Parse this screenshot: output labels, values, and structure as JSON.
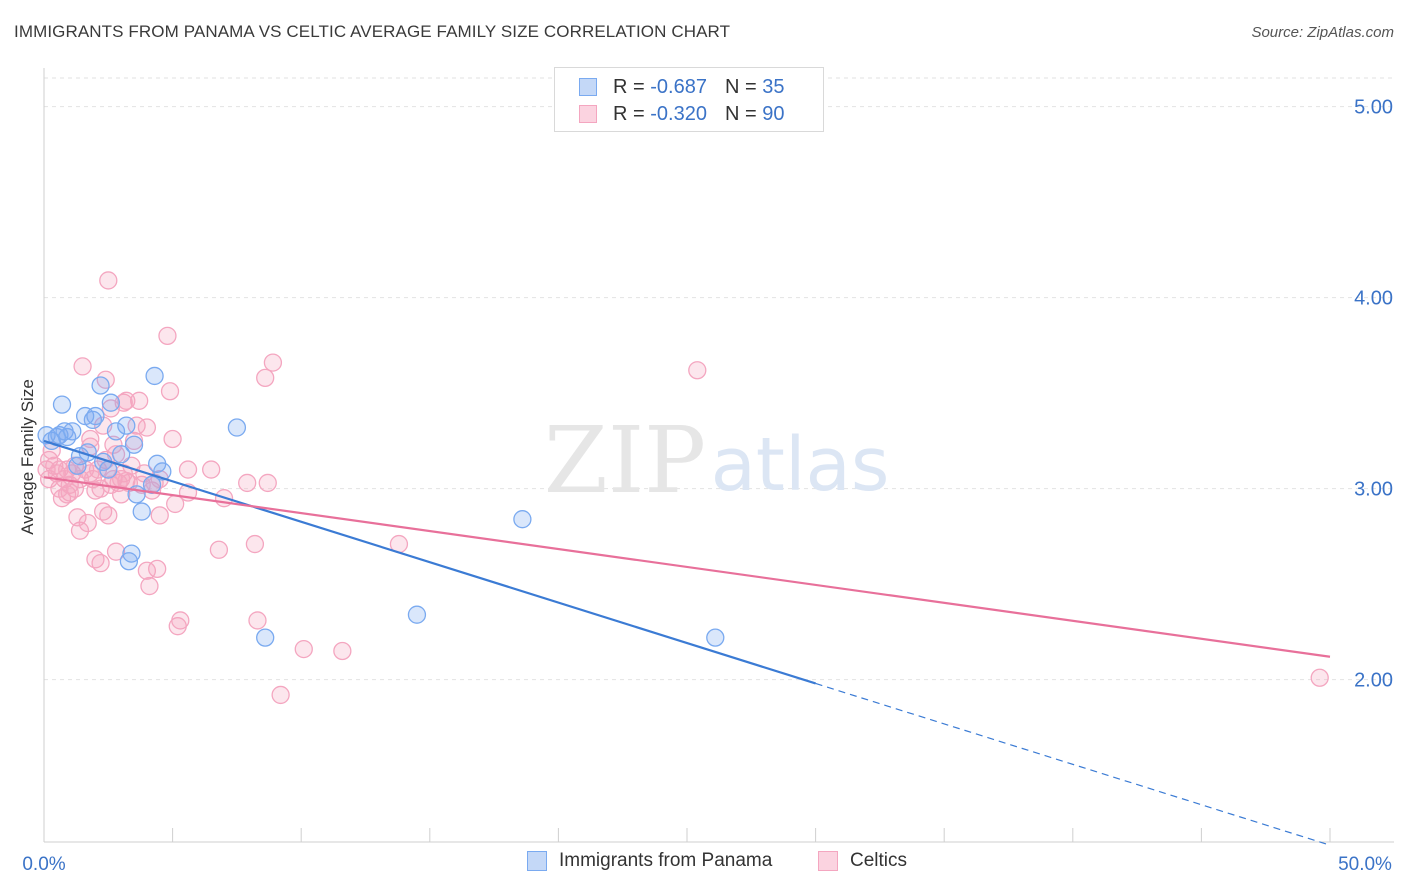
{
  "title": "IMMIGRANTS FROM PANAMA VS CELTIC AVERAGE FAMILY SIZE CORRELATION CHART",
  "source": "Source: ZipAtlas.com",
  "watermark": {
    "zip": "ZIP",
    "atlas": "atlas"
  },
  "legend_top": {
    "rows": [
      {
        "r_label": "R =",
        "r_value": "-0.687",
        "n_label": "N =",
        "n_value": "35",
        "color": "#7aaaf0"
      },
      {
        "r_label": "R =",
        "r_value": "-0.320",
        "n_label": "N =",
        "n_value": "90",
        "color": "#f4a6c0"
      }
    ]
  },
  "legend_bottom": {
    "items": [
      {
        "label": "Immigrants from Panama",
        "color": "#7aaaf0"
      },
      {
        "label": "Celtics",
        "color": "#f4a6c0"
      }
    ]
  },
  "chart_data": {
    "type": "scatter",
    "title": "IMMIGRANTS FROM PANAMA VS CELTIC AVERAGE FAMILY SIZE CORRELATION CHART",
    "xlabel": "",
    "ylabel": "Average Family Size",
    "xlim": [
      0,
      50
    ],
    "ylim": [
      1.15,
      5.15
    ],
    "x_tick_labels": [
      "0.0%",
      "50.0%"
    ],
    "y_ticks": [
      2.0,
      3.0,
      4.0,
      5.0
    ],
    "y_tick_labels": [
      "2.00",
      "3.00",
      "4.00",
      "5.00"
    ],
    "grid": true,
    "colors": {
      "blue": "#3b7bd4",
      "pink": "#e8709a",
      "tick_label": "#3b73c7"
    },
    "series": [
      {
        "name": "Immigrants from Panama",
        "color": "#7aaaf0",
        "trend": {
          "x": [
            0,
            30
          ],
          "y": [
            3.25,
            1.98
          ],
          "extend_dashed_to": 50,
          "color": "#3b7bd4"
        },
        "points": [
          [
            0.1,
            3.28
          ],
          [
            0.3,
            3.25
          ],
          [
            0.5,
            3.27
          ],
          [
            0.6,
            3.28
          ],
          [
            0.8,
            3.3
          ],
          [
            0.9,
            3.27
          ],
          [
            0.7,
            3.44
          ],
          [
            1.1,
            3.3
          ],
          [
            1.3,
            3.12
          ],
          [
            1.4,
            3.17
          ],
          [
            1.6,
            3.38
          ],
          [
            1.7,
            3.19
          ],
          [
            1.9,
            3.36
          ],
          [
            2.0,
            3.38
          ],
          [
            2.2,
            3.54
          ],
          [
            2.3,
            3.14
          ],
          [
            2.5,
            3.1
          ],
          [
            2.6,
            3.45
          ],
          [
            2.8,
            3.3
          ],
          [
            3.0,
            3.18
          ],
          [
            3.2,
            3.33
          ],
          [
            3.3,
            2.62
          ],
          [
            3.4,
            2.66
          ],
          [
            3.5,
            3.23
          ],
          [
            3.6,
            2.97
          ],
          [
            3.8,
            2.88
          ],
          [
            4.2,
            3.02
          ],
          [
            4.3,
            3.59
          ],
          [
            4.4,
            3.13
          ],
          [
            4.6,
            3.09
          ],
          [
            7.5,
            3.32
          ],
          [
            8.6,
            2.22
          ],
          [
            14.5,
            2.34
          ],
          [
            18.6,
            2.84
          ],
          [
            26.1,
            2.22
          ]
        ]
      },
      {
        "name": "Celtics",
        "color": "#f4a6c0",
        "trend": {
          "x": [
            0,
            50
          ],
          "y": [
            3.06,
            2.12
          ],
          "color": "#e8709a"
        },
        "points": [
          [
            0.1,
            3.1
          ],
          [
            0.2,
            3.15
          ],
          [
            0.2,
            3.05
          ],
          [
            0.3,
            3.2
          ],
          [
            0.4,
            3.12
          ],
          [
            0.5,
            3.08
          ],
          [
            0.6,
            3.0
          ],
          [
            0.6,
            3.1
          ],
          [
            0.7,
            2.95
          ],
          [
            0.8,
            3.05
          ],
          [
            0.9,
            3.1
          ],
          [
            1.0,
            3.02
          ],
          [
            1.0,
            2.98
          ],
          [
            1.1,
            3.08
          ],
          [
            1.2,
            3.0
          ],
          [
            1.2,
            3.12
          ],
          [
            1.3,
            2.85
          ],
          [
            1.4,
            2.78
          ],
          [
            1.4,
            3.05
          ],
          [
            1.5,
            3.64
          ],
          [
            1.6,
            3.1
          ],
          [
            1.7,
            2.82
          ],
          [
            1.8,
            3.22
          ],
          [
            1.8,
            3.08
          ],
          [
            1.9,
            3.05
          ],
          [
            2.0,
            2.99
          ],
          [
            2.0,
            2.63
          ],
          [
            2.1,
            3.1
          ],
          [
            2.2,
            2.61
          ],
          [
            2.2,
            3.0
          ],
          [
            2.3,
            3.33
          ],
          [
            2.3,
            2.88
          ],
          [
            2.4,
            3.57
          ],
          [
            2.4,
            3.15
          ],
          [
            2.5,
            2.86
          ],
          [
            2.5,
            3.1
          ],
          [
            2.5,
            4.09
          ],
          [
            2.6,
            3.42
          ],
          [
            2.7,
            3.05
          ],
          [
            2.7,
            3.23
          ],
          [
            2.8,
            3.18
          ],
          [
            2.8,
            2.67
          ],
          [
            2.9,
            3.03
          ],
          [
            3.0,
            3.05
          ],
          [
            3.0,
            2.97
          ],
          [
            3.1,
            3.45
          ],
          [
            3.1,
            3.08
          ],
          [
            3.2,
            3.04
          ],
          [
            3.3,
            3.03
          ],
          [
            3.4,
            3.12
          ],
          [
            3.5,
            3.25
          ],
          [
            3.6,
            3.33
          ],
          [
            3.7,
            3.46
          ],
          [
            3.8,
            3.02
          ],
          [
            3.9,
            3.08
          ],
          [
            4.0,
            2.57
          ],
          [
            4.0,
            3.32
          ],
          [
            4.1,
            2.49
          ],
          [
            4.2,
            2.99
          ],
          [
            4.3,
            3.03
          ],
          [
            4.4,
            2.58
          ],
          [
            4.5,
            3.05
          ],
          [
            4.5,
            2.86
          ],
          [
            4.8,
            3.8
          ],
          [
            4.9,
            3.51
          ],
          [
            5.0,
            3.26
          ],
          [
            5.1,
            2.92
          ],
          [
            5.2,
            2.28
          ],
          [
            5.3,
            2.31
          ],
          [
            5.6,
            3.1
          ],
          [
            6.5,
            3.1
          ],
          [
            6.8,
            2.68
          ],
          [
            7.0,
            2.95
          ],
          [
            7.9,
            3.03
          ],
          [
            8.2,
            2.71
          ],
          [
            8.3,
            2.31
          ],
          [
            8.6,
            3.58
          ],
          [
            8.7,
            3.03
          ],
          [
            8.9,
            3.66
          ],
          [
            10.1,
            2.16
          ],
          [
            11.6,
            2.15
          ],
          [
            9.2,
            1.92
          ],
          [
            13.8,
            2.71
          ],
          [
            5.6,
            2.98
          ],
          [
            3.2,
            3.46
          ],
          [
            1.8,
            3.26
          ],
          [
            0.9,
            2.97
          ],
          [
            2.6,
            3.02
          ],
          [
            25.4,
            3.62
          ],
          [
            49.6,
            2.01
          ]
        ]
      }
    ]
  }
}
